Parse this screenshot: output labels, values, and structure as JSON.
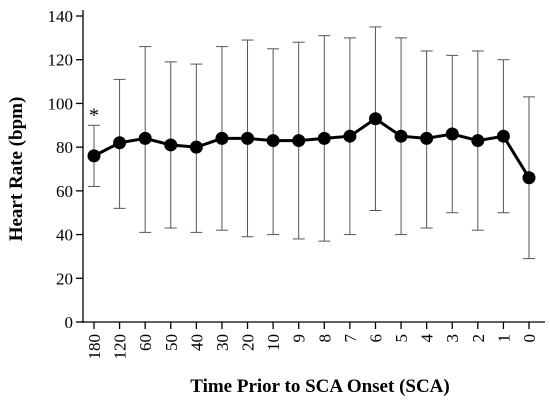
{
  "chart_data": {
    "type": "line",
    "title": "",
    "xlabel": "Time Prior to SCA Onset (SCA)",
    "ylabel": "Heart Rate (bpm)",
    "ylim": [
      0,
      140
    ],
    "yticks": [
      0,
      20,
      40,
      60,
      80,
      100,
      120,
      140
    ],
    "categories": [
      "180",
      "120",
      "60",
      "50",
      "40",
      "30",
      "20",
      "10",
      "9",
      "8",
      "7",
      "6",
      "5",
      "4",
      "3",
      "2",
      "1",
      "0"
    ],
    "series": [
      {
        "values": [
          76,
          82,
          84,
          81,
          80,
          84,
          84,
          83,
          83,
          84,
          85,
          93,
          85,
          84,
          86,
          83,
          85,
          66
        ],
        "error_low": [
          62,
          52,
          41,
          43,
          41,
          42,
          39,
          40,
          38,
          37,
          40,
          51,
          40,
          43,
          50,
          42,
          50,
          29
        ],
        "error_high": [
          90,
          111,
          126,
          119,
          118,
          126,
          129,
          125,
          128,
          131,
          130,
          135,
          130,
          124,
          122,
          124,
          120,
          103
        ]
      }
    ],
    "annotations": [
      {
        "text": "*",
        "category": "180"
      }
    ],
    "grid": false,
    "legend": "none"
  }
}
